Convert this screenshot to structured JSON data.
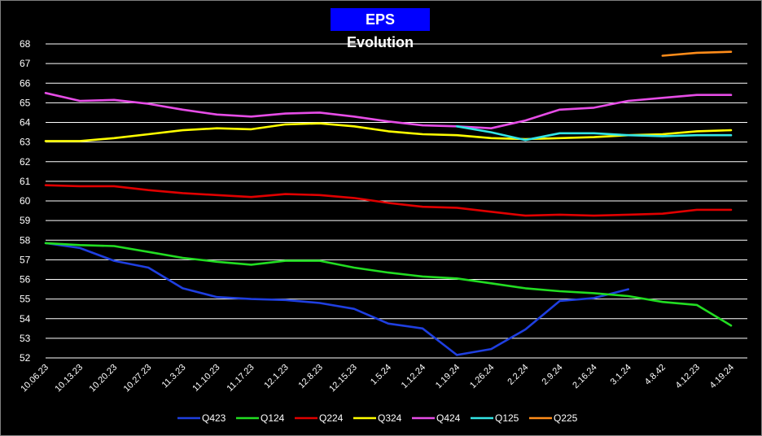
{
  "chart_data": {
    "type": "line",
    "title": "EPS Evolution",
    "xlabel": "",
    "ylabel": "",
    "ylim": [
      52,
      68
    ],
    "yticks": [
      52,
      53,
      54,
      55,
      56,
      57,
      58,
      59,
      60,
      61,
      62,
      63,
      64,
      65,
      66,
      67,
      68
    ],
    "grid": true,
    "legend_position": "bottom",
    "categories": [
      "10.06.23",
      "10.13.23",
      "10.20.23",
      "10.27.23",
      "11.3.23",
      "11.10.23",
      "11.17.23",
      "12.1.23",
      "12.8.23",
      "12.15.23",
      "1.5.24",
      "1.12.24",
      "1.19.24",
      "1.26.24",
      "2.2.24",
      "2.9.24",
      "2.16.24",
      "3.1.24",
      "4.8.42",
      "4.12.23",
      "4.19.24"
    ],
    "series": [
      {
        "name": "Q423",
        "color": "#1f3fe0",
        "values": [
          57.85,
          57.6,
          56.95,
          56.6,
          55.55,
          55.1,
          55.0,
          54.95,
          54.8,
          54.5,
          53.75,
          53.5,
          52.15,
          52.45,
          53.45,
          54.9,
          55.05,
          55.5,
          null,
          null,
          null
        ]
      },
      {
        "name": "Q124",
        "color": "#22dd22",
        "values": [
          57.85,
          57.75,
          57.7,
          57.4,
          57.1,
          56.9,
          56.75,
          56.95,
          56.95,
          56.6,
          56.35,
          56.15,
          56.05,
          55.8,
          55.55,
          55.4,
          55.3,
          55.15,
          54.85,
          54.7,
          53.65
        ]
      },
      {
        "name": "Q224",
        "color": "#e00000",
        "values": [
          60.8,
          60.75,
          60.75,
          60.55,
          60.4,
          60.3,
          60.2,
          60.35,
          60.3,
          60.15,
          59.9,
          59.7,
          59.65,
          59.45,
          59.25,
          59.3,
          59.25,
          59.3,
          59.35,
          59.55,
          59.55
        ]
      },
      {
        "name": "Q324",
        "color": "#ffff00",
        "values": [
          63.05,
          63.05,
          63.2,
          63.4,
          63.6,
          63.7,
          63.65,
          63.9,
          63.95,
          63.8,
          63.55,
          63.4,
          63.35,
          63.2,
          63.15,
          63.2,
          63.25,
          63.35,
          63.4,
          63.55,
          63.6
        ]
      },
      {
        "name": "Q424",
        "color": "#e64de6",
        "values": [
          65.5,
          65.1,
          65.15,
          64.95,
          64.65,
          64.4,
          64.3,
          64.45,
          64.5,
          64.3,
          64.05,
          63.85,
          63.8,
          63.7,
          64.1,
          64.65,
          64.75,
          65.1,
          65.25,
          65.4,
          65.4
        ]
      },
      {
        "name": "Q125",
        "color": "#33e5e5",
        "values": [
          null,
          null,
          null,
          null,
          null,
          null,
          null,
          null,
          null,
          null,
          null,
          null,
          63.8,
          63.5,
          63.1,
          63.45,
          63.45,
          63.35,
          63.3,
          63.35,
          63.35
        ]
      },
      {
        "name": "Q225",
        "color": "#ff8c1a",
        "values": [
          null,
          null,
          null,
          null,
          null,
          null,
          null,
          null,
          null,
          null,
          null,
          null,
          null,
          null,
          null,
          null,
          null,
          null,
          67.4,
          67.55,
          67.6
        ]
      }
    ]
  }
}
